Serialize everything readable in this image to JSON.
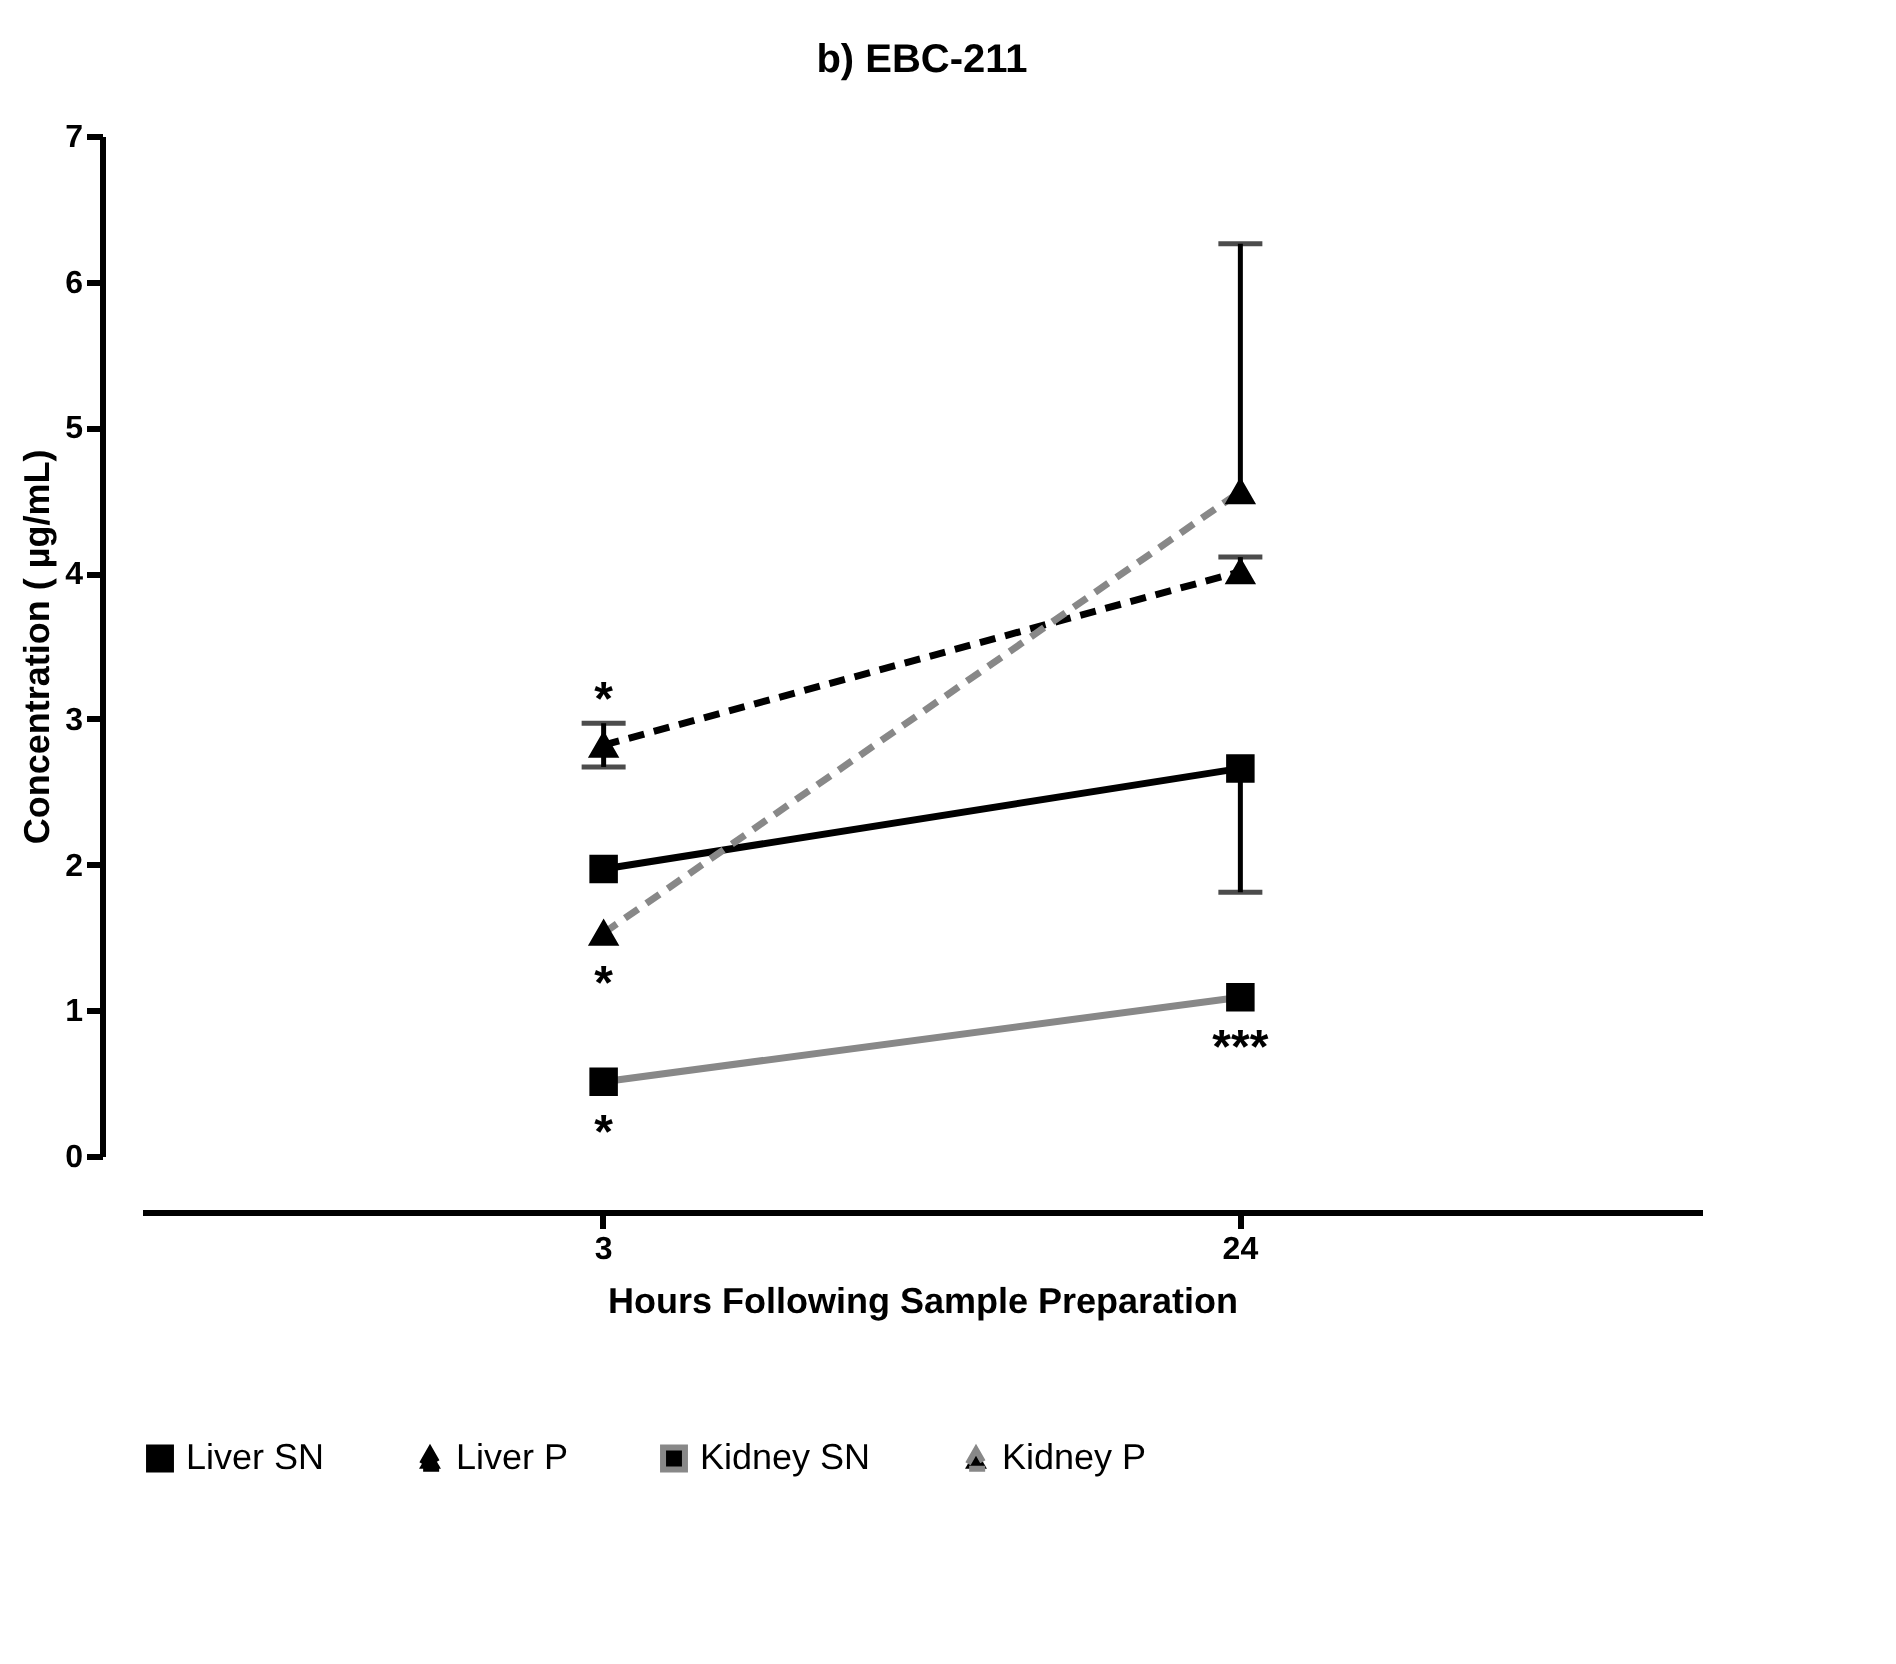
{
  "chart_data": {
    "type": "line",
    "title": "b) EBC-211",
    "xlabel": "Hours Following Sample Preparation",
    "ylabel": "Concentration ( µg/mL)",
    "categories": [
      "3",
      "24"
    ],
    "series": [
      {
        "name": "Liver SN",
        "color": "#000000",
        "values": [
          1.97,
          2.66
        ],
        "errors": [
          null,
          [
            1.81,
            2.66
          ]
        ],
        "marker": "square",
        "line_style": "solid"
      },
      {
        "name": "Liver P",
        "color": "#000000",
        "values": [
          2.82,
          4.01
        ],
        "errors": [
          0.15,
          [
            4.01,
            4.11
          ]
        ],
        "marker": "triangle",
        "line_style": "dashed"
      },
      {
        "name": "Kidney SN",
        "color": "#888888",
        "values": [
          0.51,
          1.09
        ],
        "marker": "square",
        "line_style": "solid"
      },
      {
        "name": "Kidney P",
        "color": "#888888",
        "values": [
          1.53,
          4.56
        ],
        "errors": [
          null,
          [
            4.56,
            6.26
          ]
        ],
        "marker": "triangle",
        "line_style": "dashed"
      }
    ],
    "ylim": [
      0,
      7
    ],
    "yticks": [
      0,
      1,
      2,
      3,
      4,
      5,
      6,
      7
    ],
    "legend": "bottom",
    "annotations": [
      {
        "text": "*",
        "x": "3",
        "y": 2.82
      },
      {
        "text": "*",
        "x": "3",
        "y": 1.53
      },
      {
        "text": "*",
        "x": "3",
        "y": 0.51
      },
      {
        "text": "***",
        "x": "24",
        "y": 1.09
      }
    ]
  }
}
